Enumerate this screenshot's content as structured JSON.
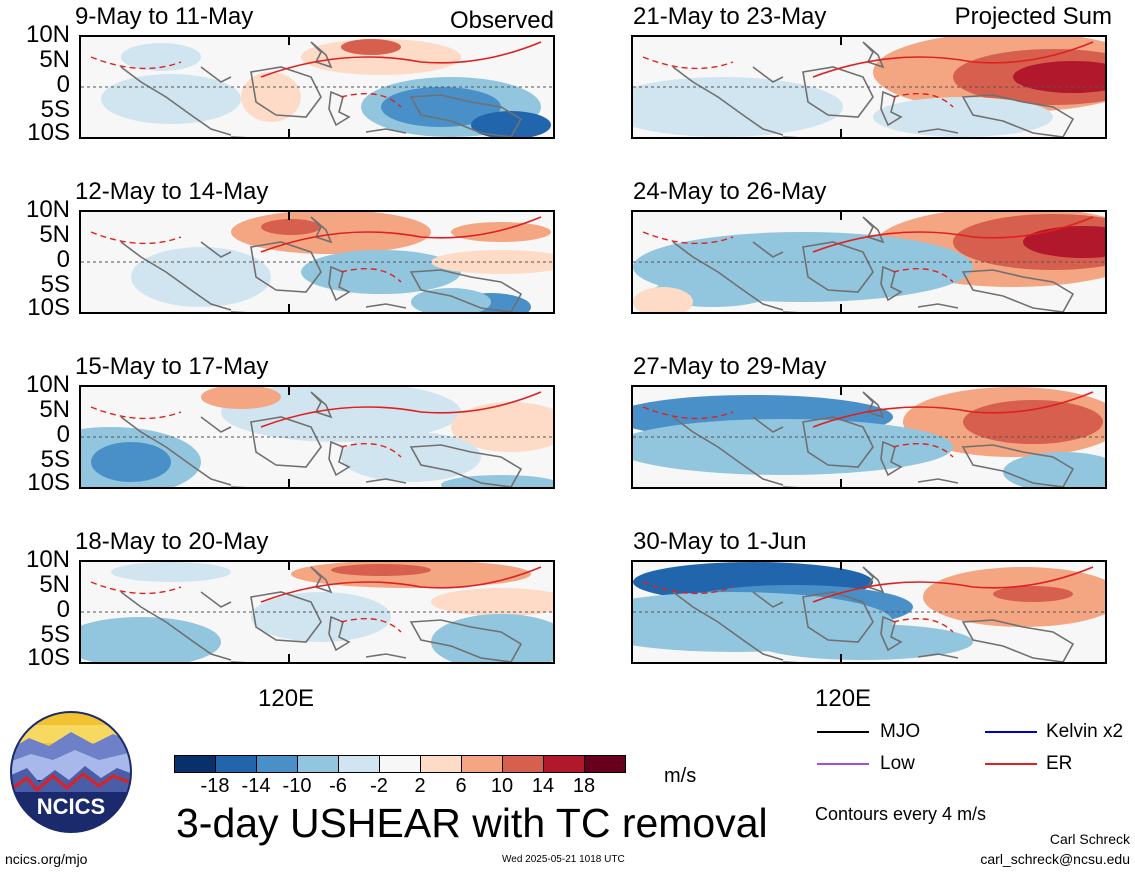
{
  "header": {
    "observed_label": "Observed",
    "projected_label": "Projected Sum"
  },
  "lat_labels": [
    "10N",
    "5N",
    "0",
    "5S",
    "10S"
  ],
  "lon_label": "120E",
  "panels_left": [
    {
      "period": "9-May to 11-May"
    },
    {
      "period": "12-May to 14-May"
    },
    {
      "period": "15-May to 17-May"
    },
    {
      "period": "18-May to 20-May"
    }
  ],
  "panels_right": [
    {
      "period": "21-May to 23-May"
    },
    {
      "period": "24-May to 26-May"
    },
    {
      "period": "27-May to 29-May"
    },
    {
      "period": "30-May to 1-Jun"
    }
  ],
  "colorbar": {
    "colors": [
      "#08306b",
      "#2166ac",
      "#4a90c8",
      "#92c5de",
      "#d1e5f0",
      "#f7f7f7",
      "#fddbc7",
      "#f4a582",
      "#d6604d",
      "#b2182b",
      "#67001f"
    ],
    "labels": [
      "-18",
      "-14",
      "-10",
      "-6",
      "-2",
      "2",
      "6",
      "10",
      "14",
      "18"
    ],
    "units": "m/s"
  },
  "title": "3-day USHEAR with TC removal",
  "legend": {
    "items": [
      {
        "label": "MJO",
        "color": "#000000"
      },
      {
        "label": "Kelvin x2",
        "color": "#0000cc"
      },
      {
        "label": "Low",
        "color": "#a050d0"
      },
      {
        "label": "ER",
        "color": "#e02020"
      }
    ],
    "contour_note": "Contours every 4 m/s"
  },
  "logo": {
    "text": "NCICS"
  },
  "footer": {
    "site": "ncics.org/mjo",
    "timestamp": "Wed 2025-05-21 1018 UTC",
    "author": "Carl Schreck",
    "email": "carl_schreck@ncsu.edu"
  }
}
